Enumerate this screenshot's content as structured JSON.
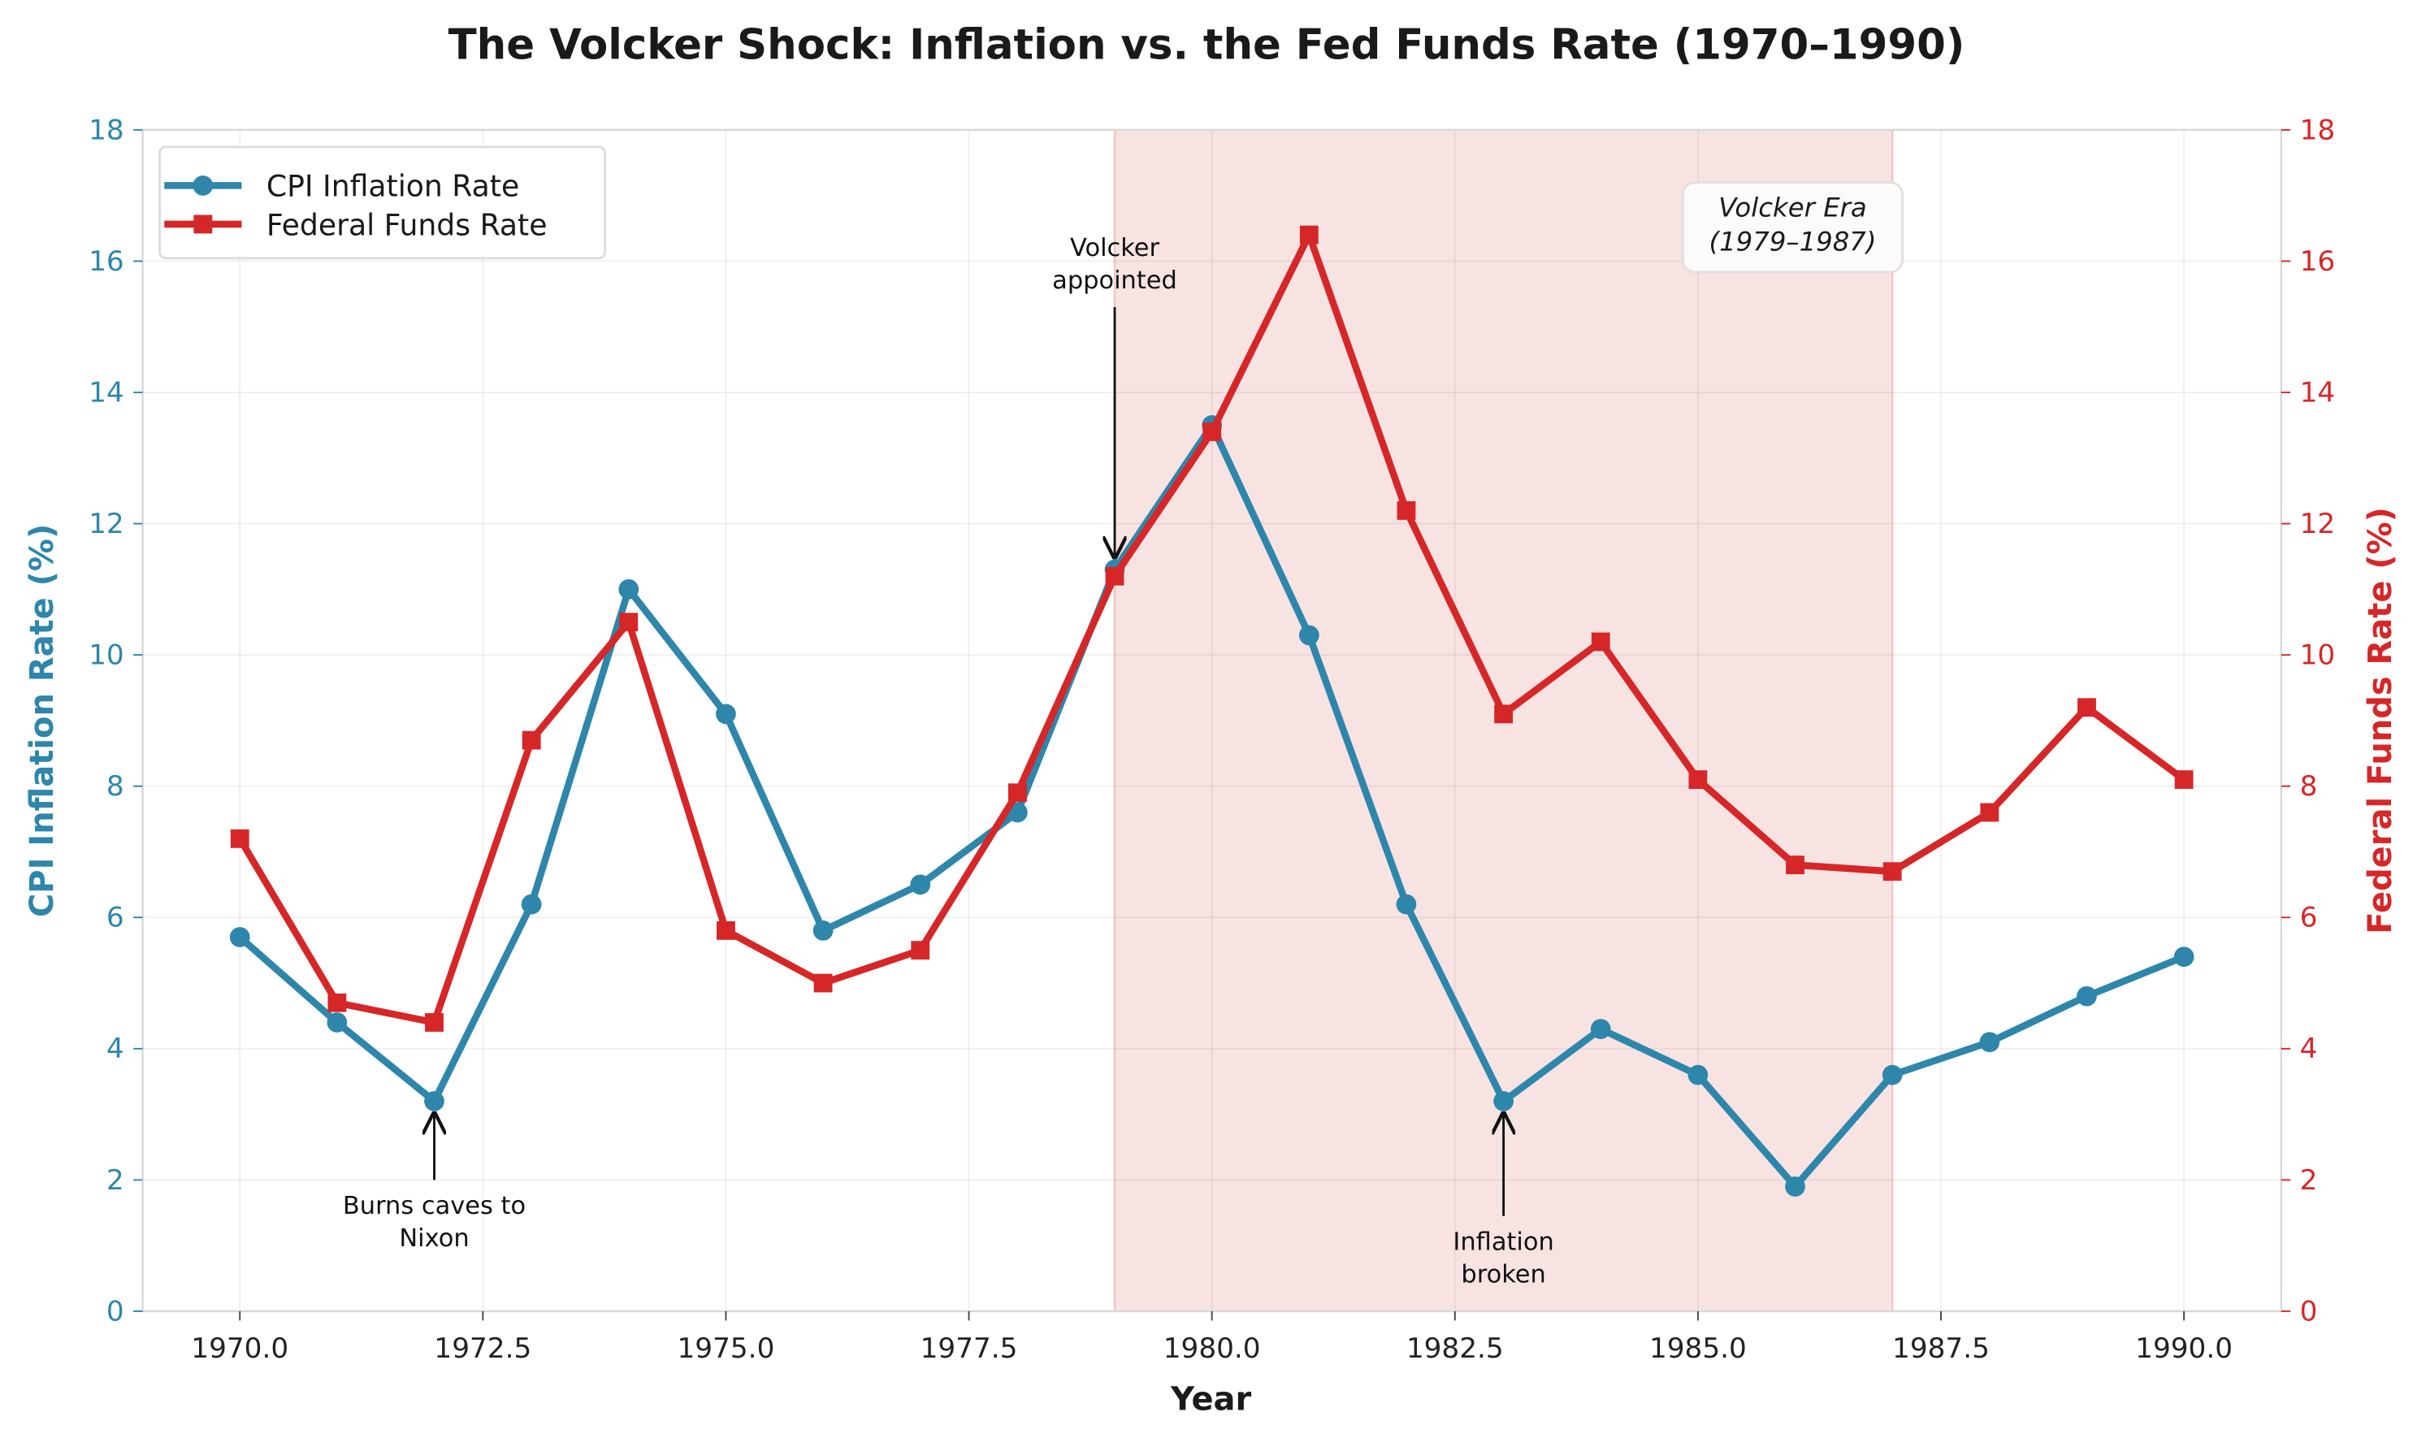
{
  "chart_data": {
    "type": "line",
    "title": "The Volcker Shock: Inflation vs. the Fed Funds Rate (1970–1990)",
    "xlabel": "Year",
    "ylabel_left": "CPI Inflation Rate (%)",
    "ylabel_right": "Federal Funds Rate (%)",
    "xlim": [
      1969,
      1991
    ],
    "ylim": [
      0,
      18
    ],
    "xticks": [
      1970,
      1972.5,
      1975,
      1977.5,
      1980,
      1982.5,
      1985,
      1987.5,
      1990
    ],
    "xtick_labels": [
      "1970.0",
      "1972.5",
      "1975.0",
      "1977.5",
      "1980.0",
      "1982.5",
      "1985.0",
      "1987.5",
      "1990.0"
    ],
    "yticks": [
      0,
      2,
      4,
      6,
      8,
      10,
      12,
      14,
      16,
      18
    ],
    "ytick_labels": [
      "0",
      "2",
      "4",
      "6",
      "8",
      "10",
      "12",
      "14",
      "16",
      "18"
    ],
    "grid": true,
    "legend_position": "top-left",
    "x": [
      1970,
      1971,
      1972,
      1973,
      1974,
      1975,
      1976,
      1977,
      1978,
      1979,
      1980,
      1981,
      1982,
      1983,
      1984,
      1985,
      1986,
      1987,
      1988,
      1989,
      1990
    ],
    "series": [
      {
        "name": "CPI Inflation Rate",
        "axis": "left",
        "color": "#2e86ab",
        "marker": "circle",
        "values": [
          5.7,
          4.4,
          3.2,
          6.2,
          11.0,
          9.1,
          5.8,
          6.5,
          7.6,
          11.3,
          13.5,
          10.3,
          6.2,
          3.2,
          4.3,
          3.6,
          1.9,
          3.6,
          4.1,
          4.8,
          5.4
        ]
      },
      {
        "name": "Federal Funds Rate",
        "axis": "right",
        "color": "#d62728",
        "marker": "square",
        "values": [
          7.2,
          4.7,
          4.4,
          8.7,
          10.5,
          5.8,
          5.0,
          5.5,
          7.9,
          11.2,
          13.4,
          16.4,
          12.2,
          9.1,
          10.2,
          8.1,
          6.8,
          6.7,
          7.6,
          9.2,
          8.1
        ]
      }
    ],
    "shaded_region": {
      "x_start": 1979,
      "x_end": 1987,
      "color": "#f8e3e3",
      "label_lines": [
        "Volcker Era",
        "(1979–1987)"
      ]
    },
    "annotations": [
      {
        "lines": [
          "Volcker",
          "appointed"
        ],
        "xy": [
          1979,
          11.3
        ],
        "xytext": [
          1979,
          15.3
        ],
        "text_side": "above"
      },
      {
        "lines": [
          "Burns caves to",
          "Nixon"
        ],
        "xy": [
          1972,
          3.2
        ],
        "xytext": [
          1972,
          2.0
        ],
        "text_side": "below"
      },
      {
        "lines": [
          "Inflation",
          "broken"
        ],
        "xy": [
          1983,
          3.2
        ],
        "xytext": [
          1983,
          1.45
        ],
        "text_side": "below"
      }
    ]
  }
}
